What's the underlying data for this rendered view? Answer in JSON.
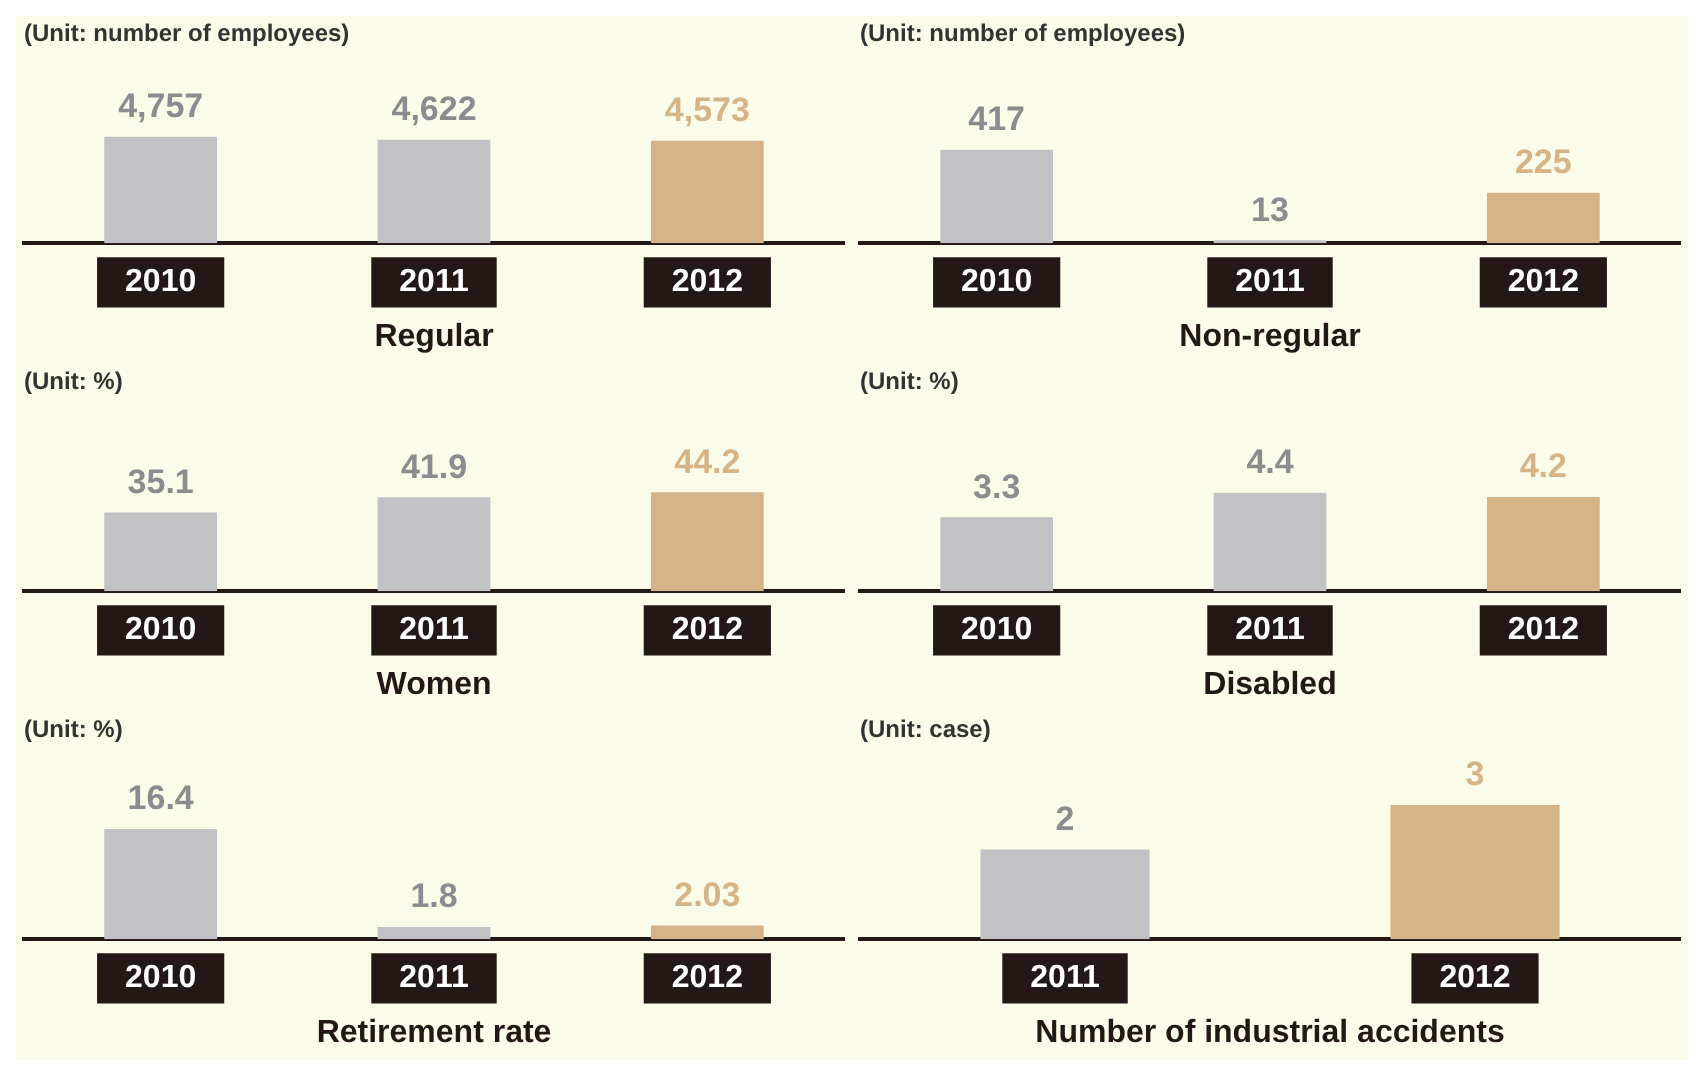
{
  "chart_data": [
    {
      "type": "bar",
      "subtitle": "(Unit: number of employees)",
      "xlabel": "Regular",
      "categories": [
        "2010",
        "2011",
        "2012"
      ],
      "values": [
        4757,
        4622,
        4573
      ],
      "colors": [
        "#c1c2c4",
        "#c1c2c4",
        "#d5b587"
      ],
      "value_labels": [
        "4,757",
        "4,622",
        "4,573"
      ]
    },
    {
      "type": "bar",
      "subtitle": "(Unit: number of employees)",
      "xlabel": "Non-regular",
      "categories": [
        "2010",
        "2011",
        "2012"
      ],
      "values": [
        417,
        13,
        225
      ],
      "colors": [
        "#c1c2c4",
        "#c1c2c4",
        "#d5b587"
      ],
      "data_labels": true
    },
    {
      "type": "bar",
      "subtitle": "(Unit: %)",
      "xlabel": "Women",
      "categories": [
        "2010",
        "2011",
        "2012"
      ],
      "values": [
        35.1,
        41.9,
        44.2
      ],
      "colors": [
        "#c1c2c4",
        "#c1c2c4",
        "#d5b587"
      ],
      "data_labels": true
    },
    {
      "type": "bar",
      "subtitle": "(Unit: %)",
      "xlabel": "Disabled",
      "categories": [
        "2010",
        "2011",
        "2012"
      ],
      "values": [
        3.3,
        4.4,
        4.2
      ],
      "colors": [
        "#c1c2c4",
        "#c1c2c4",
        "#d5b587"
      ],
      "data_labels": true
    },
    {
      "type": "bar",
      "subtitle": "(Unit: %)",
      "xlabel": "Retirement rate",
      "categories": [
        "2010",
        "2011",
        "2012"
      ],
      "values": [
        16.4,
        1.8,
        2.03
      ],
      "colors": [
        "#c1c2c4",
        "#c1c2c4",
        "#d5b587"
      ],
      "data_labels": true
    },
    {
      "type": "bar",
      "subtitle": "(Unit: case)",
      "xlabel": "Number of industrial accidents",
      "categories": [
        "2011",
        "2012"
      ],
      "values": [
        2,
        3
      ],
      "colors": [
        "#c1c2c4",
        "#d5b587"
      ],
      "data_labels": true
    }
  ]
}
